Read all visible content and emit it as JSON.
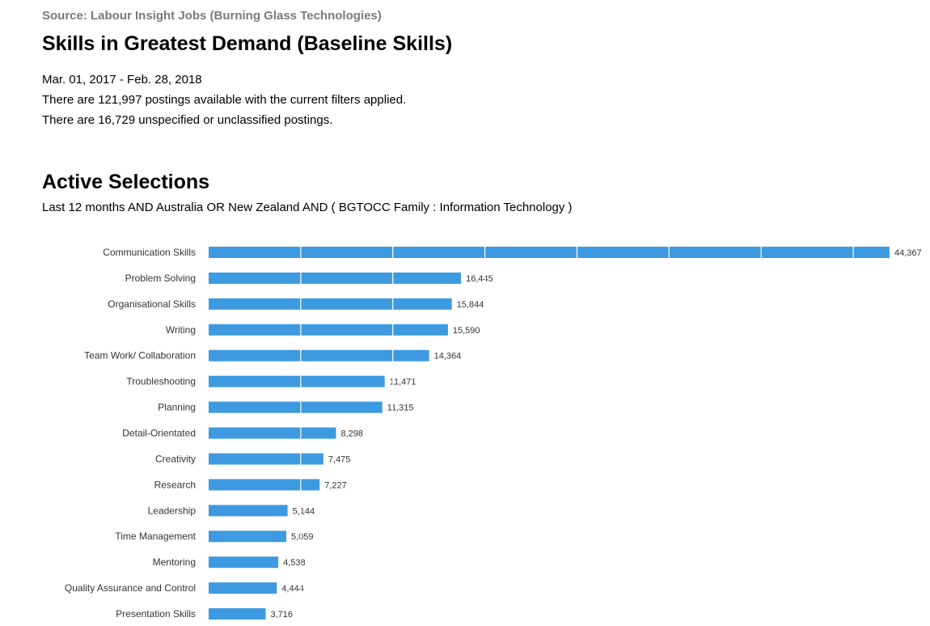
{
  "header": {
    "source": "Source: Labour Insight Jobs (Burning Glass Technologies)",
    "title": "Skills in Greatest Demand (Baseline Skills)",
    "date_range": "Mar.  01, 2017  - Feb.  28, 2018",
    "postings_line": "There are 121,997 postings available with the current filters applied.",
    "unclassified_line": "There are 16,729 unspecified or unclassified postings."
  },
  "active_selections": {
    "heading": "Active Selections",
    "text": "Last 12 months AND Australia OR New Zealand AND ( BGTOCC Family : Information Technology )"
  },
  "colors": {
    "bar": "#3d9ae0",
    "gridline": "#ffffff",
    "label": "#333333"
  },
  "chart_data": {
    "type": "bar",
    "orientation": "horizontal",
    "categories": [
      "Communication Skills",
      "Problem Solving",
      "Organisational Skills",
      "Writing",
      "Team Work/ Collaboration",
      "Troubleshooting",
      "Planning",
      "Detail-Orientated",
      "Creativity",
      "Research",
      "Leadership",
      "Time Management",
      "Mentoring",
      "Quality Assurance and Control",
      "Presentation Skills"
    ],
    "values": [
      44367,
      16445,
      15844,
      15590,
      14364,
      11471,
      11315,
      8298,
      7475,
      7227,
      5144,
      5059,
      4538,
      4444,
      3716
    ],
    "value_labels": [
      "44,367",
      "16,445",
      "15,844",
      "15,590",
      "14,364",
      "11,471",
      "11,315",
      "8,298",
      "7,475",
      "7,227",
      "5,144",
      "5,059",
      "4,538",
      "4,444",
      "3,716"
    ],
    "xlim": [
      0,
      44367
    ],
    "grid_step": 6000,
    "grid": true,
    "legend": false
  }
}
